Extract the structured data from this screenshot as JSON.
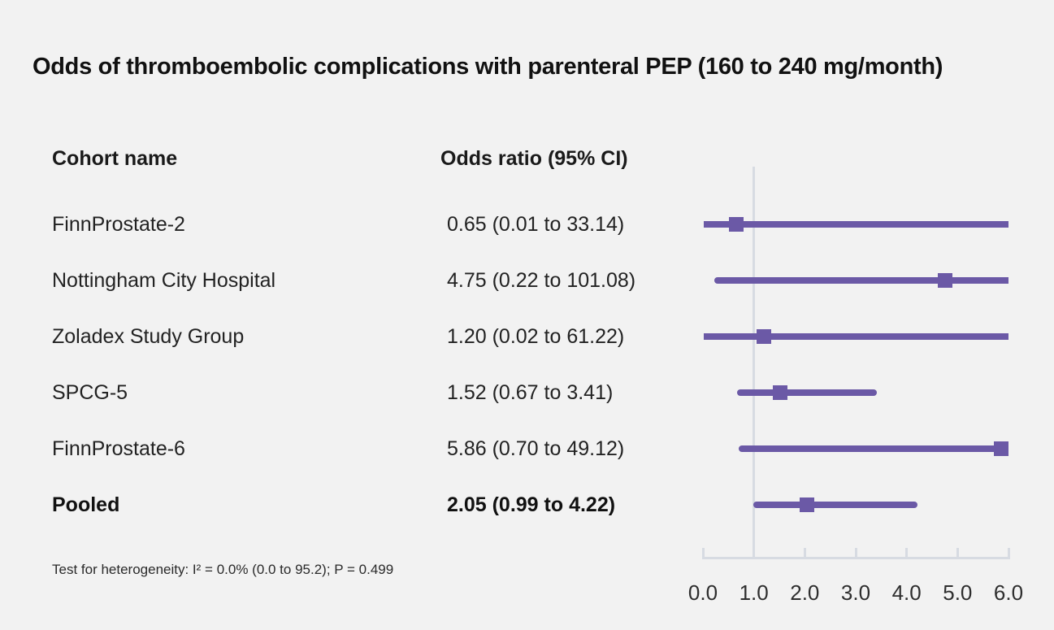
{
  "title": "Odds of thromboembolic complications with parenteral PEP (160 to 240 mg/month)",
  "columns": {
    "cohort": "Cohort name",
    "odds": "Odds ratio (95% CI)"
  },
  "footnote": "Test for heterogeneity: I² = 0.0% (0.0 to 95.2); P = 0.499",
  "chart_data": {
    "type": "forest",
    "title": "Odds of thromboembolic complications with parenteral PEP (160 to 240 mg/month)",
    "xlim": [
      0.0,
      6.0
    ],
    "x_ticks": [
      "0.0",
      "1.0",
      "2.0",
      "3.0",
      "4.0",
      "5.0",
      "6.0"
    ],
    "x_tick_values": [
      0,
      1,
      2,
      3,
      4,
      5,
      6
    ],
    "reference_line": 1.0,
    "grid": "off",
    "studies": [
      {
        "name": "FinnProstate-2",
        "or": 0.65,
        "ci_low": 0.01,
        "ci_high": 33.14,
        "label": "0.65 (0.01 to 33.14)",
        "bold": false
      },
      {
        "name": "Nottingham City Hospital",
        "or": 4.75,
        "ci_low": 0.22,
        "ci_high": 101.08,
        "label": "4.75 (0.22 to 101.08)",
        "bold": false
      },
      {
        "name": "Zoladex Study Group",
        "or": 1.2,
        "ci_low": 0.02,
        "ci_high": 61.22,
        "label": "1.20 (0.02 to 61.22)",
        "bold": false
      },
      {
        "name": "SPCG-5",
        "or": 1.52,
        "ci_low": 0.67,
        "ci_high": 3.41,
        "label": "1.52 (0.67 to 3.41)",
        "bold": false
      },
      {
        "name": "FinnProstate-6",
        "or": 5.86,
        "ci_low": 0.7,
        "ci_high": 49.12,
        "label": "5.86 (0.70 to 49.12)",
        "bold": false
      },
      {
        "name": "Pooled",
        "or": 2.05,
        "ci_low": 0.99,
        "ci_high": 4.22,
        "label": "2.05 (0.99 to 4.22)",
        "bold": true
      }
    ],
    "colors": {
      "marker": "#6b59a6",
      "ci_line": "#6b59a6",
      "axis": "#d7dbe2",
      "reference": "#d7dbe2",
      "background": "#f2f2f2"
    }
  }
}
